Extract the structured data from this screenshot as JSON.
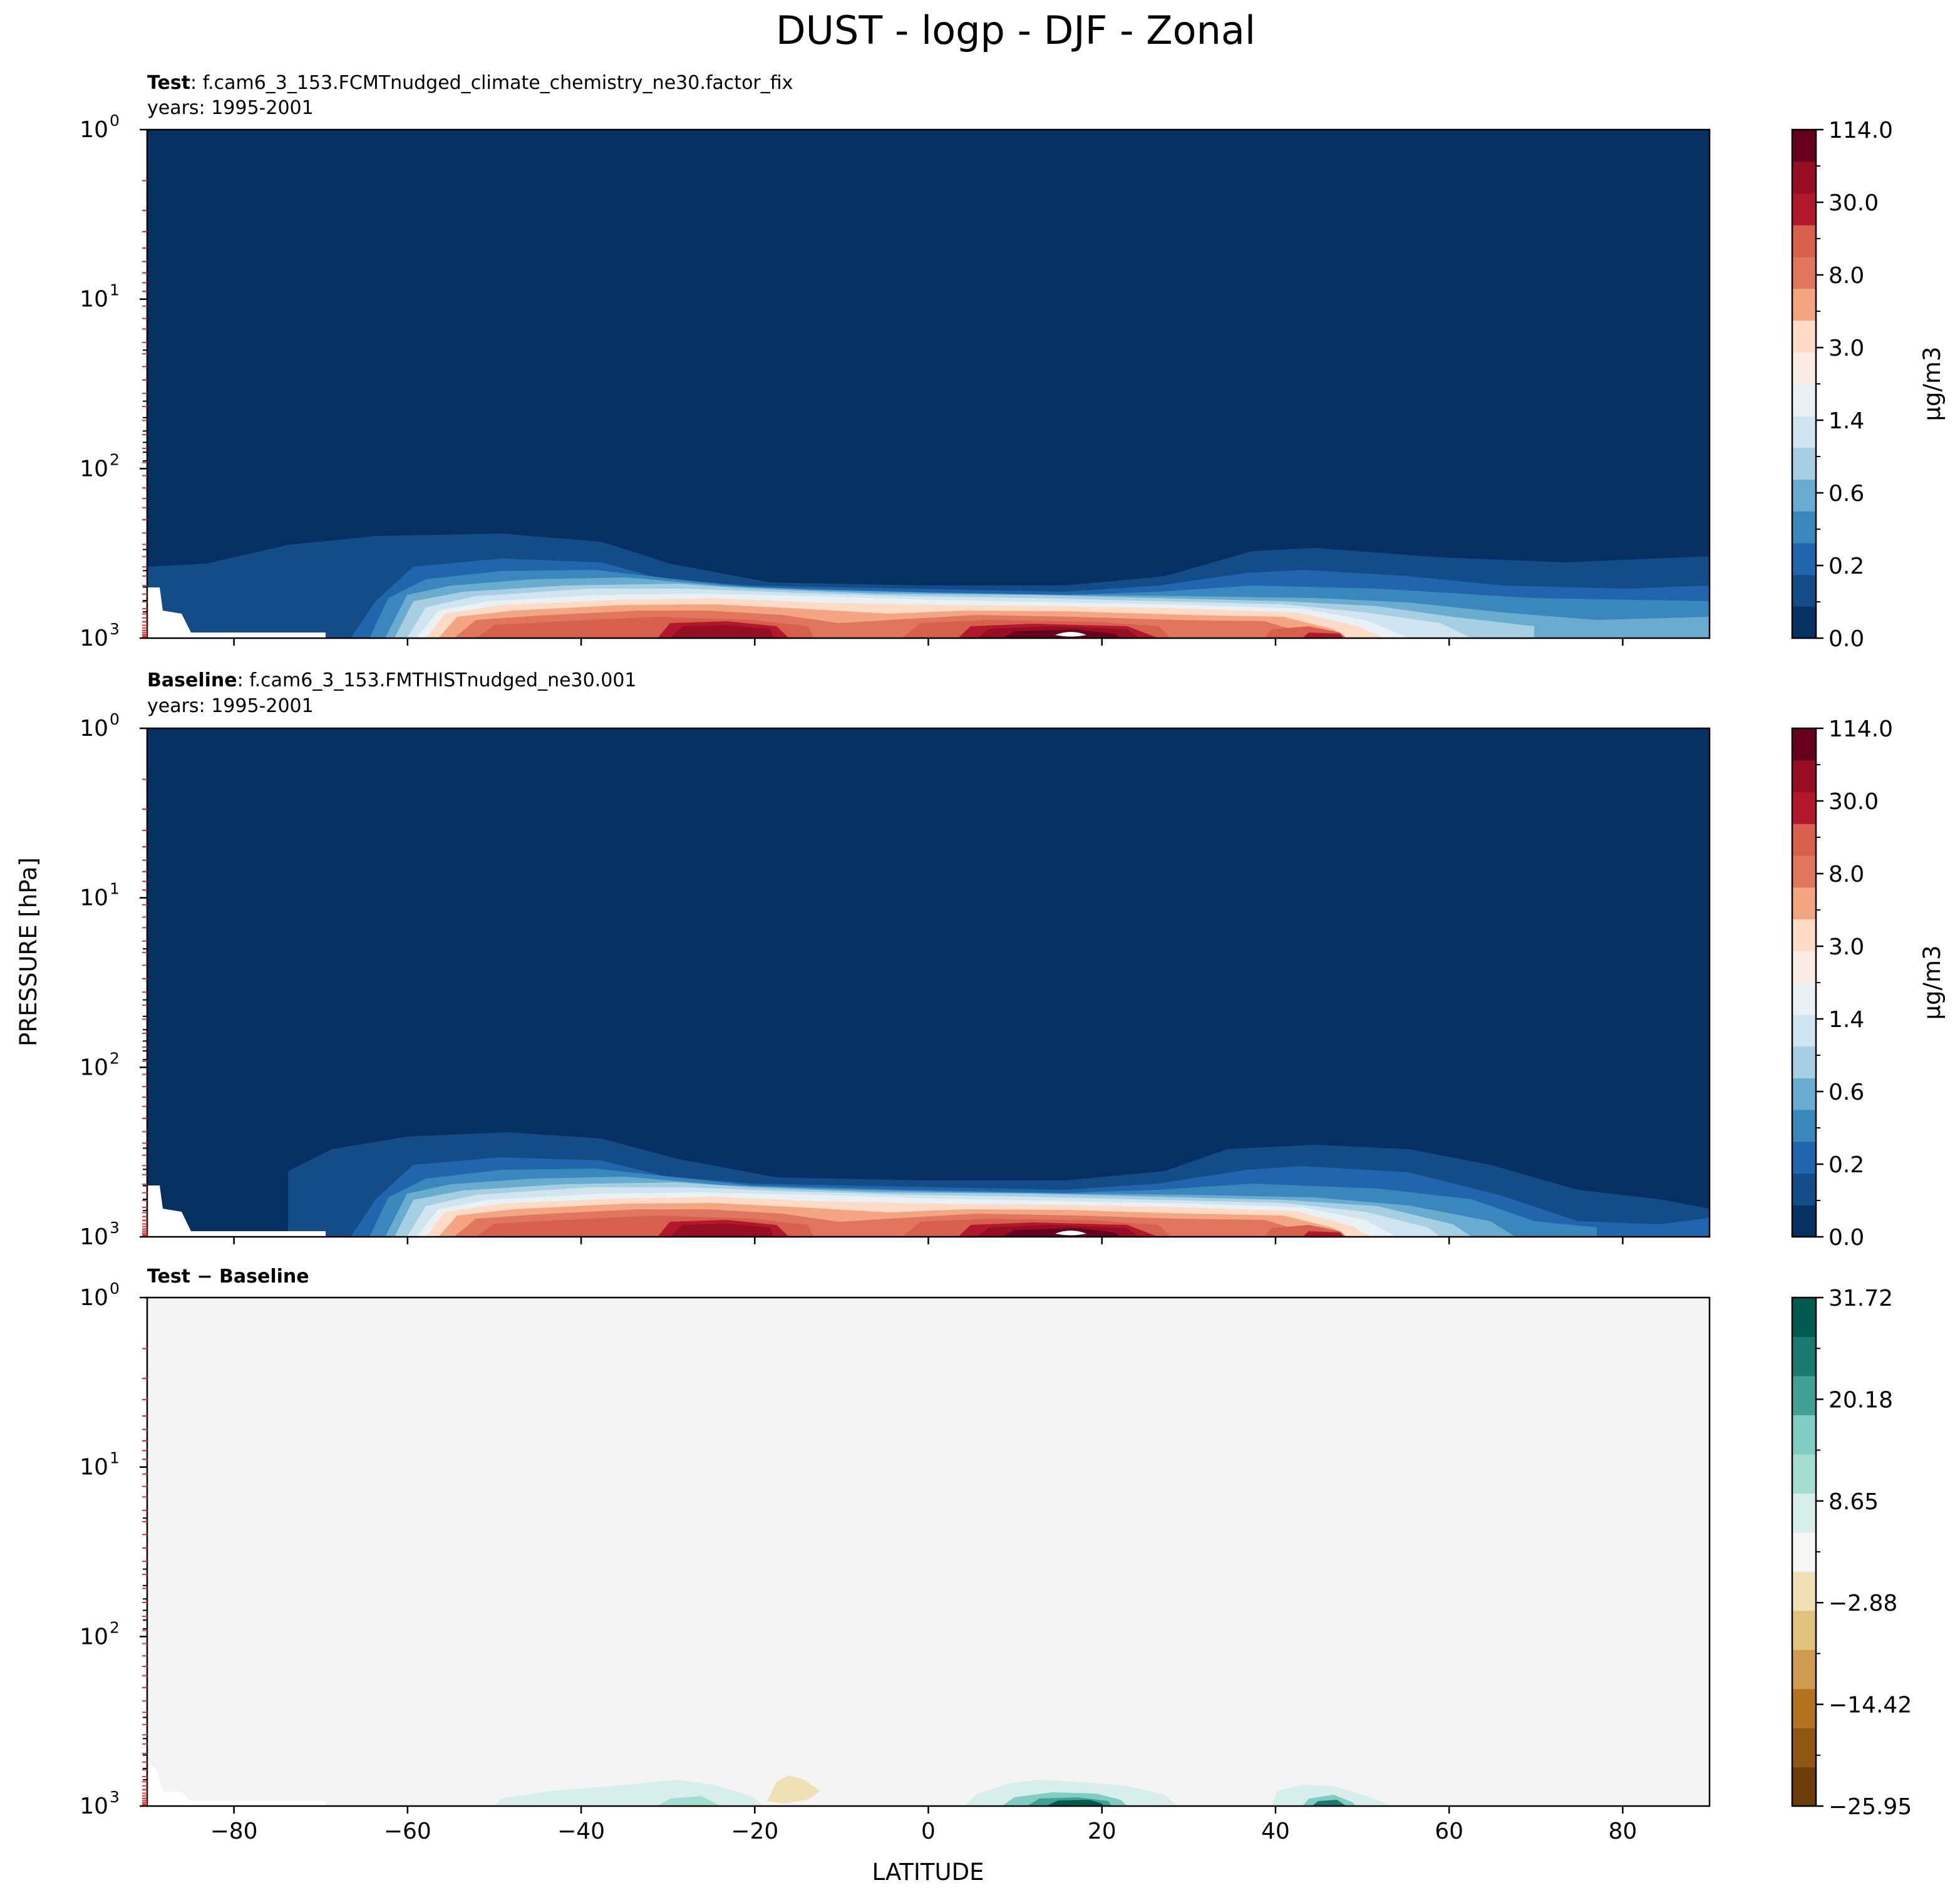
{
  "figure": {
    "suptitle": "DUST - logp - DJF - Zonal",
    "ylabel": "PRESSURE [hPa]",
    "xlabel": "LATITUDE"
  },
  "chart_data": [
    {
      "type": "contour",
      "panel": "test",
      "title_bold": "Test",
      "title_rest": ": f.cam6_3_153.FCMTnudged_climate_chemistry_ne30.factor_fix",
      "subtitle": "years: 1995-2001",
      "xlim": [
        -90,
        90
      ],
      "ylim": [
        1000,
        1
      ],
      "yscale": "log",
      "yticks": [
        1,
        10,
        100,
        1000
      ],
      "ytick_labels": [
        {
          "base": "10",
          "exp": "0"
        },
        {
          "base": "10",
          "exp": "1"
        },
        {
          "base": "10",
          "exp": "2"
        },
        {
          "base": "10",
          "exp": "3"
        }
      ],
      "xticks": [
        -80,
        -60,
        -40,
        -20,
        0,
        20,
        40,
        60,
        80
      ],
      "colorbar": {
        "label": "μg/m3",
        "tick_labels": [
          "0.0",
          "0.2",
          "0.6",
          "1.4",
          "3.0",
          "8.0",
          "30.0",
          "114.0"
        ],
        "colors": [
          "#053061",
          "#134c87",
          "#2166ac",
          "#3a87bd",
          "#6aacd0",
          "#a7cfe4",
          "#d1e5f0",
          "#eaf1f5",
          "#f9ebe3",
          "#fddbc7",
          "#f4a582",
          "#e0765f",
          "#d6604d",
          "#b2182b",
          "#960d24",
          "#67001f"
        ]
      },
      "field": {
        "background": "#053061",
        "features": [
          {
            "desc": "outer dust envelope",
            "lat": [
              -85,
              90
            ],
            "p_top_hPa": 250,
            "color": "#134c87"
          },
          {
            "desc": "lower-troposphere dust layer",
            "lat": [
              -65,
              70
            ],
            "p_top_hPa": 520,
            "color": "#2166ac"
          },
          {
            "desc": "southern subtropical maximum",
            "lat_center": -25,
            "p_center_hPa": 950,
            "max_color": "#960d24"
          },
          {
            "desc": "northern subtropical maximum (Sahara)",
            "lat_center": 17,
            "p_center_hPa": 980,
            "max_color": "#67001f"
          },
          {
            "desc": "northern midlatitude maximum",
            "lat_center": 45,
            "p_center_hPa": 980,
            "max_color": "#b2182b"
          }
        ]
      }
    },
    {
      "type": "contour",
      "panel": "baseline",
      "title_bold": "Baseline",
      "title_rest": ": f.cam6_3_153.FMTHISTnudged_ne30.001",
      "subtitle": "years: 1995-2001",
      "xlim": [
        -90,
        90
      ],
      "ylim": [
        1000,
        1
      ],
      "yscale": "log",
      "yticks": [
        1,
        10,
        100,
        1000
      ],
      "ytick_labels": [
        {
          "base": "10",
          "exp": "0"
        },
        {
          "base": "10",
          "exp": "1"
        },
        {
          "base": "10",
          "exp": "2"
        },
        {
          "base": "10",
          "exp": "3"
        }
      ],
      "xticks": [
        -80,
        -60,
        -40,
        -20,
        0,
        20,
        40,
        60,
        80
      ],
      "colorbar": {
        "label": "μg/m3",
        "tick_labels": [
          "0.0",
          "0.2",
          "0.6",
          "1.4",
          "3.0",
          "8.0",
          "30.0",
          "114.0"
        ],
        "colors": [
          "#053061",
          "#134c87",
          "#2166ac",
          "#3a87bd",
          "#6aacd0",
          "#a7cfe4",
          "#d1e5f0",
          "#eaf1f5",
          "#f9ebe3",
          "#fddbc7",
          "#f4a582",
          "#e0765f",
          "#d6604d",
          "#b2182b",
          "#960d24",
          "#67001f"
        ]
      },
      "field": {
        "background": "#053061",
        "features": [
          {
            "desc": "outer dust envelope",
            "lat": [
              -73,
              90
            ],
            "p_top_hPa": 250,
            "color": "#134c87"
          },
          {
            "desc": "lower-troposphere dust layer",
            "lat": [
              -65,
              65
            ],
            "p_top_hPa": 520,
            "color": "#2166ac"
          },
          {
            "desc": "southern subtropical maximum",
            "lat_center": -25,
            "p_center_hPa": 950,
            "max_color": "#960d24"
          },
          {
            "desc": "northern subtropical maximum (Sahara)",
            "lat_center": 17,
            "p_center_hPa": 980,
            "max_color": "#67001f"
          },
          {
            "desc": "northern midlatitude maximum",
            "lat_center": 45,
            "p_center_hPa": 980,
            "max_color": "#b2182b"
          }
        ]
      }
    },
    {
      "type": "contour",
      "panel": "difference",
      "title_bold": "Test − Baseline",
      "title_rest": "",
      "subtitle": "",
      "xlim": [
        -90,
        90
      ],
      "ylim": [
        1000,
        1
      ],
      "yscale": "log",
      "yticks": [
        1,
        10,
        100,
        1000
      ],
      "ytick_labels": [
        {
          "base": "10",
          "exp": "0"
        },
        {
          "base": "10",
          "exp": "1"
        },
        {
          "base": "10",
          "exp": "2"
        },
        {
          "base": "10",
          "exp": "3"
        }
      ],
      "xticks": [
        -80,
        -60,
        -40,
        -20,
        0,
        20,
        40,
        60,
        80
      ],
      "colorbar": {
        "label": "",
        "tick_labels": [
          "−25.95",
          "−14.42",
          "−2.88",
          "8.65",
          "20.18",
          "31.72"
        ],
        "colors": [
          "#6b3e0a",
          "#8f5614",
          "#b5731f",
          "#cc9b4f",
          "#dfc27d",
          "#f0e0b6",
          "#f6f6f5",
          "#d7eeea",
          "#a6ddd2",
          "#80cdc1",
          "#41a094",
          "#1a7a72",
          "#015a4e"
        ]
      },
      "field": {
        "background": "#f3f4f3",
        "features": [
          {
            "desc": "positive anomaly",
            "lat_center": -30,
            "p_center_hPa": 980,
            "color": "#d7eeea"
          },
          {
            "desc": "negative anomaly",
            "lat_center": -15,
            "p_center_hPa": 920,
            "color": "#f0e0b6"
          },
          {
            "desc": "positive anomaly (max)",
            "lat_center": 17,
            "p_center_hPa": 990,
            "color": "#015a4e"
          },
          {
            "desc": "positive anomaly",
            "lat_center": 45,
            "p_center_hPa": 990,
            "color": "#1a7a72"
          }
        ]
      }
    }
  ]
}
